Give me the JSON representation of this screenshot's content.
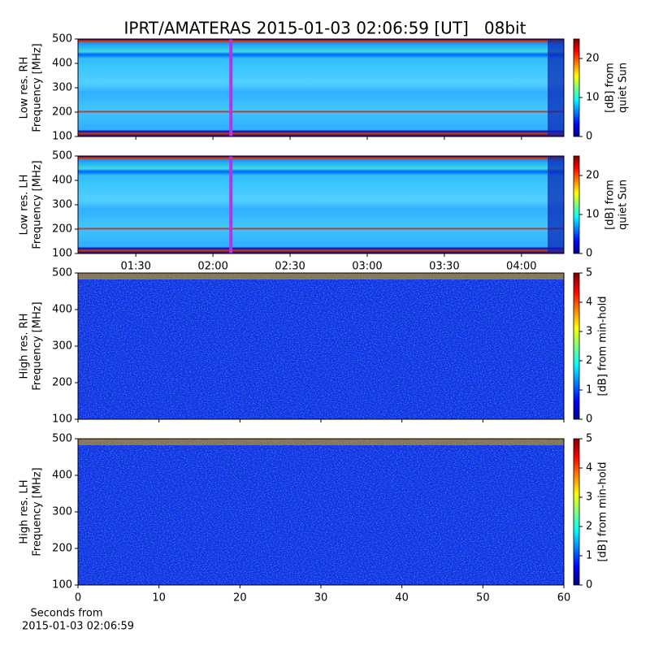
{
  "chart_data": [
    {
      "type": "spectrogram",
      "title": "IPRT/AMATERAS 2015-01-03 02:06:59 [UT]   08bit",
      "ylabel": [
        "Low res. RH",
        "Frequency [MHz]"
      ],
      "ylim": [
        100,
        500
      ],
      "yticks": [
        100,
        200,
        300,
        400,
        500
      ],
      "xlim": [
        67.5,
        256.5
      ],
      "xticks": [
        90,
        120,
        150,
        180,
        210,
        240
      ],
      "marker_x": 126.98,
      "marker_color": "#b533e8",
      "colormap": "jet",
      "colorbar": {
        "label": [
          "[dB] from",
          "quiet Sun"
        ],
        "clim": [
          0,
          25
        ],
        "ticks": [
          0,
          10,
          20
        ]
      }
    },
    {
      "type": "spectrogram",
      "ylabel": [
        "Low res. LH",
        "Frequency [MHz]"
      ],
      "ylim": [
        100,
        500
      ],
      "yticks": [
        100,
        200,
        300,
        400,
        500
      ],
      "xlim": [
        67.5,
        256.5
      ],
      "xticks": [
        {
          "value": 90,
          "label": "01:30"
        },
        {
          "value": 120,
          "label": "02:00"
        },
        {
          "value": 150,
          "label": "02:30"
        },
        {
          "value": 180,
          "label": "03:00"
        },
        {
          "value": 210,
          "label": "03:30"
        },
        {
          "value": 240,
          "label": "04:00"
        }
      ],
      "marker_x": 126.98,
      "marker_color": "#b533e8",
      "colormap": "jet",
      "colorbar": {
        "label": [
          "[dB] from",
          "quiet Sun"
        ],
        "clim": [
          0,
          25
        ],
        "ticks": [
          0,
          10,
          20
        ]
      }
    },
    {
      "type": "spectrogram",
      "ylabel": [
        "High res. RH",
        "Frequency [MHz]"
      ],
      "ylim": [
        100,
        500
      ],
      "yticks": [
        100,
        200,
        300,
        400,
        500
      ],
      "xlim": [
        0,
        60
      ],
      "xticks": [
        0,
        10,
        20,
        30,
        40,
        50,
        60
      ],
      "colormap": "jet",
      "colorbar": {
        "label": [
          "[dB] from min-hold"
        ],
        "clim": [
          0,
          5
        ],
        "ticks": [
          0,
          1,
          2,
          3,
          4,
          5
        ]
      }
    },
    {
      "type": "spectrogram",
      "ylabel": [
        "High res. LH",
        "Frequency [MHz]"
      ],
      "ylim": [
        100,
        500
      ],
      "yticks": [
        100,
        200,
        300,
        400,
        500
      ],
      "xlim": [
        0,
        60
      ],
      "xticks": [
        0,
        10,
        20,
        30,
        40,
        50,
        60
      ],
      "xlabel": [
        "Seconds from",
        "2015-01-03 02:06:59"
      ],
      "colormap": "jet",
      "colorbar": {
        "label": [
          "[dB] from min-hold"
        ],
        "clim": [
          0,
          5
        ],
        "ticks": [
          0,
          1,
          2,
          3,
          4,
          5
        ]
      }
    }
  ]
}
